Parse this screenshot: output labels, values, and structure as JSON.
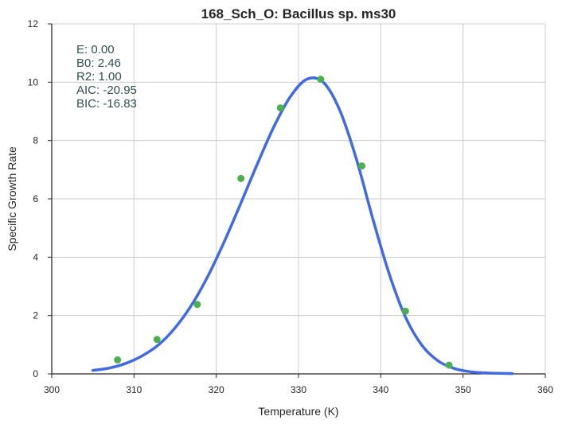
{
  "chart_data": {
    "type": "scatter",
    "title": "168_Sch_O: Bacillus sp. ms30",
    "xlabel": "Temperature (K)",
    "ylabel": "Specific Growth Rate",
    "xlim": [
      300,
      360
    ],
    "ylim": [
      0,
      12
    ],
    "xticks": [
      300,
      310,
      320,
      330,
      340,
      350,
      360
    ],
    "yticks": [
      0,
      2,
      4,
      6,
      8,
      10,
      12
    ],
    "grid": true,
    "colors": {
      "points": "#4caf50",
      "fit": "#4169e1",
      "grid": "#cccccc",
      "axis": "#262626",
      "stats": "#2f4f4f"
    },
    "series": [
      {
        "kind": "points",
        "x": [
          308.0,
          312.8,
          317.7,
          323.0,
          327.8,
          332.7,
          337.7,
          343.0,
          348.3
        ],
        "y": [
          0.48,
          1.18,
          2.38,
          6.7,
          9.12,
          10.1,
          7.13,
          2.15,
          0.3
        ]
      },
      {
        "kind": "fit-line",
        "x": [
          305,
          307,
          309,
          311,
          313,
          315,
          317,
          319,
          321,
          323,
          325,
          327,
          329,
          331,
          333,
          335,
          337,
          339,
          341,
          343,
          345,
          347,
          349,
          351,
          353,
          356
        ],
        "y": [
          0.12,
          0.2,
          0.36,
          0.62,
          1.0,
          1.58,
          2.36,
          3.36,
          4.55,
          5.86,
          7.2,
          8.47,
          9.5,
          10.1,
          10.0,
          9.05,
          7.4,
          5.35,
          3.45,
          1.95,
          0.98,
          0.44,
          0.18,
          0.07,
          0.03,
          0.01
        ]
      }
    ]
  },
  "stats": [
    {
      "label": "E:",
      "value": "0.00"
    },
    {
      "label": "B0:",
      "value": "2.46"
    },
    {
      "label": "R2:",
      "value": "1.00"
    },
    {
      "label": "AIC:",
      "value": "-20.95"
    },
    {
      "label": "BIC:",
      "value": "-16.83"
    }
  ]
}
